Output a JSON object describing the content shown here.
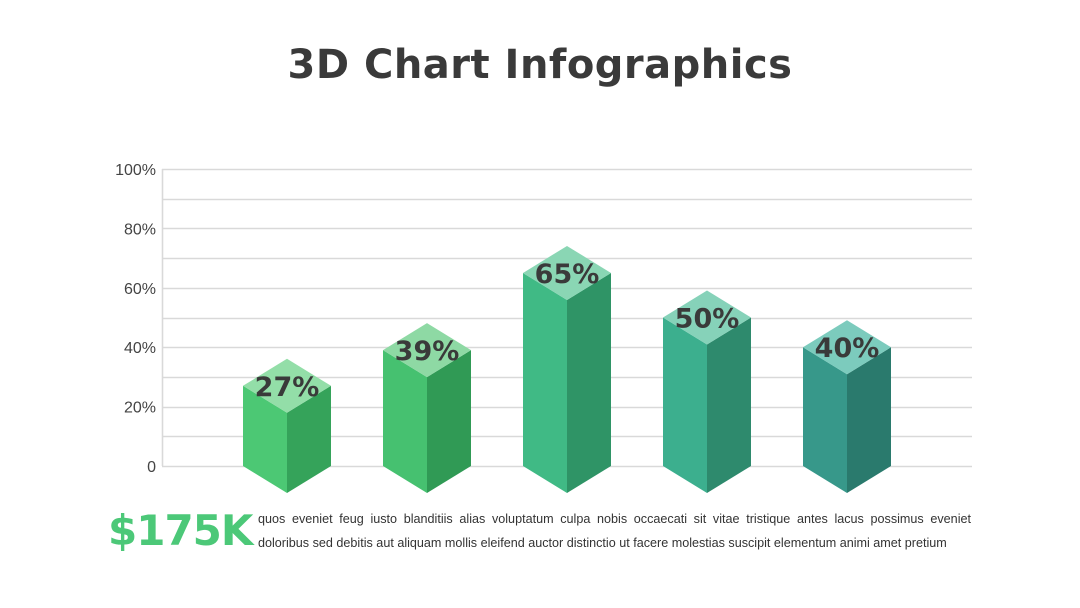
{
  "slide": {
    "title": "3D Chart Infographics"
  },
  "stat": {
    "value": "$175K",
    "text": "quos eveniet feug iusto blanditiis alias voluptatum culpa nobis occaecati sit vitae tristique antes lacus possimus eveniet doloribus sed debitis aut aliquam mollis eleifend auctor distinctio ut facere molestias suscipit elementum animi amet pretium"
  },
  "chart_data": {
    "type": "bar",
    "title": "",
    "xlabel": "",
    "ylabel": "",
    "ylim": [
      0,
      100
    ],
    "grid": true,
    "legend": "none",
    "y_ticks": [
      "0",
      "20%",
      "40%",
      "60%",
      "80%",
      "100%"
    ],
    "y_tick_values": [
      0,
      20,
      40,
      60,
      80,
      100
    ],
    "values": [
      27,
      39,
      65,
      50,
      40
    ],
    "labels": [
      "27%",
      "39%",
      "65%",
      "50%",
      "40%"
    ],
    "colors": [
      {
        "front": "#4cc874",
        "side": "#35a35a",
        "top": "#93dea8"
      },
      {
        "front": "#46c170",
        "side": "#309a55",
        "top": "#8ed9a4"
      },
      {
        "front": "#40ba85",
        "side": "#2f9466",
        "top": "#8ad6b4"
      },
      {
        "front": "#3caf8e",
        "side": "#2e8a6d",
        "top": "#86d2b9"
      },
      {
        "front": "#37988a",
        "side": "#2a7a6d",
        "top": "#7ccbbd"
      }
    ]
  }
}
